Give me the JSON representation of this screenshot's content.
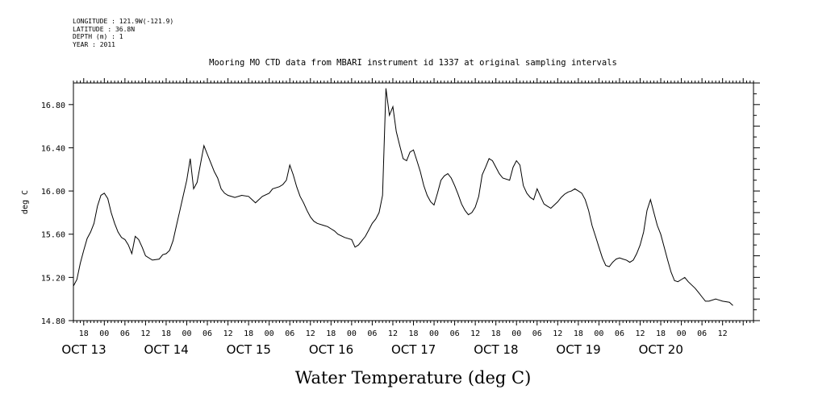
{
  "metadata": {
    "longitude": "LONGITUDE : 121.9W(-121.9)",
    "latitude": "LATITUDE : 36.8N",
    "depth": "DEPTH (m) : 1",
    "year": "YEAR : 2011"
  },
  "chart_data": {
    "type": "line",
    "title": "Mooring MO CTD data from MBARI instrument id 1337 at original sampling intervals",
    "xlabel": "Water Temperature (deg C)",
    "ylabel": "deg C",
    "ylim": [
      14.8,
      17.0
    ],
    "y_ticks": [
      "14.80",
      "15.20",
      "15.60",
      "16.00",
      "16.40",
      "16.80"
    ],
    "x_range_hours": [
      "2011-10-12T15:00",
      "2011-10-20T21:00"
    ],
    "hour_ticks": [
      "18",
      "00",
      "06",
      "12",
      "18",
      "00",
      "06",
      "12",
      "18",
      "00",
      "06",
      "12",
      "18",
      "00",
      "06",
      "12",
      "18",
      "00",
      "06",
      "12",
      "18",
      "00",
      "06",
      "12",
      "18",
      "00",
      "06",
      "12",
      "18",
      "00",
      "06",
      "12"
    ],
    "date_labels": [
      "OCT 13",
      "OCT 14",
      "OCT 15",
      "OCT 16",
      "OCT 17",
      "OCT 18",
      "OCT 19",
      "OCT 20"
    ],
    "grid": false,
    "series": [
      {
        "values": [
          [
            "2011-10-12T15:00",
            15.12
          ],
          [
            "2011-10-12T16:00",
            15.18
          ],
          [
            "2011-10-12T17:00",
            15.33
          ],
          [
            "2011-10-12T18:00",
            15.45
          ],
          [
            "2011-10-12T19:00",
            15.56
          ],
          [
            "2011-10-12T20:00",
            15.62
          ],
          [
            "2011-10-12T21:00",
            15.7
          ],
          [
            "2011-10-12T22:00",
            15.86
          ],
          [
            "2011-10-12T23:00",
            15.96
          ],
          [
            "2011-10-13T00:00",
            15.98
          ],
          [
            "2011-10-13T01:00",
            15.93
          ],
          [
            "2011-10-13T02:00",
            15.8
          ],
          [
            "2011-10-13T03:00",
            15.7
          ],
          [
            "2011-10-13T04:00",
            15.62
          ],
          [
            "2011-10-13T05:00",
            15.57
          ],
          [
            "2011-10-13T06:00",
            15.55
          ],
          [
            "2011-10-13T07:00",
            15.5
          ],
          [
            "2011-10-13T08:00",
            15.42
          ],
          [
            "2011-10-13T09:00",
            15.58
          ],
          [
            "2011-10-13T10:00",
            15.55
          ],
          [
            "2011-10-13T11:00",
            15.48
          ],
          [
            "2011-10-13T12:00",
            15.4
          ],
          [
            "2011-10-13T14:00",
            15.36
          ],
          [
            "2011-10-13T16:00",
            15.37
          ],
          [
            "2011-10-13T17:00",
            15.41
          ],
          [
            "2011-10-13T18:00",
            15.42
          ],
          [
            "2011-10-13T19:00",
            15.45
          ],
          [
            "2011-10-13T20:00",
            15.54
          ],
          [
            "2011-10-13T21:00",
            15.68
          ],
          [
            "2011-10-13T22:00",
            15.82
          ],
          [
            "2011-10-13T23:00",
            15.96
          ],
          [
            "2011-10-14T00:00",
            16.1
          ],
          [
            "2011-10-14T01:00",
            16.3
          ],
          [
            "2011-10-14T02:00",
            16.02
          ],
          [
            "2011-10-14T03:00",
            16.08
          ],
          [
            "2011-10-14T04:00",
            16.25
          ],
          [
            "2011-10-14T05:00",
            16.42
          ],
          [
            "2011-10-14T06:00",
            16.34
          ],
          [
            "2011-10-14T07:00",
            16.26
          ],
          [
            "2011-10-14T08:00",
            16.18
          ],
          [
            "2011-10-14T09:00",
            16.12
          ],
          [
            "2011-10-14T10:00",
            16.02
          ],
          [
            "2011-10-14T11:00",
            15.98
          ],
          [
            "2011-10-14T12:00",
            15.96
          ],
          [
            "2011-10-14T14:00",
            15.94
          ],
          [
            "2011-10-14T16:00",
            15.96
          ],
          [
            "2011-10-14T18:00",
            15.95
          ],
          [
            "2011-10-14T20:00",
            15.89
          ],
          [
            "2011-10-14T22:00",
            15.95
          ],
          [
            "2011-10-15T00:00",
            15.98
          ],
          [
            "2011-10-15T01:00",
            16.02
          ],
          [
            "2011-10-15T03:00",
            16.04
          ],
          [
            "2011-10-15T04:00",
            16.06
          ],
          [
            "2011-10-15T05:00",
            16.1
          ],
          [
            "2011-10-15T06:00",
            16.24
          ],
          [
            "2011-10-15T07:00",
            16.15
          ],
          [
            "2011-10-15T08:00",
            16.04
          ],
          [
            "2011-10-15T09:00",
            15.95
          ],
          [
            "2011-10-15T10:00",
            15.89
          ],
          [
            "2011-10-15T11:00",
            15.82
          ],
          [
            "2011-10-15T12:00",
            15.76
          ],
          [
            "2011-10-15T13:00",
            15.72
          ],
          [
            "2011-10-15T14:00",
            15.7
          ],
          [
            "2011-10-15T16:00",
            15.68
          ],
          [
            "2011-10-15T17:00",
            15.67
          ],
          [
            "2011-10-15T18:00",
            15.65
          ],
          [
            "2011-10-15T19:00",
            15.63
          ],
          [
            "2011-10-15T20:00",
            15.6
          ],
          [
            "2011-10-15T22:00",
            15.57
          ],
          [
            "2011-10-16T00:00",
            15.55
          ],
          [
            "2011-10-16T01:00",
            15.48
          ],
          [
            "2011-10-16T02:00",
            15.5
          ],
          [
            "2011-10-16T03:00",
            15.54
          ],
          [
            "2011-10-16T04:00",
            15.58
          ],
          [
            "2011-10-16T05:00",
            15.64
          ],
          [
            "2011-10-16T06:00",
            15.7
          ],
          [
            "2011-10-16T07:00",
            15.74
          ],
          [
            "2011-10-16T08:00",
            15.8
          ],
          [
            "2011-10-16T09:00",
            15.96
          ],
          [
            "2011-10-16T10:00",
            16.95
          ],
          [
            "2011-10-16T11:00",
            16.7
          ],
          [
            "2011-10-16T12:00",
            16.78
          ],
          [
            "2011-10-16T13:00",
            16.55
          ],
          [
            "2011-10-16T14:00",
            16.42
          ],
          [
            "2011-10-16T15:00",
            16.3
          ],
          [
            "2011-10-16T16:00",
            16.28
          ],
          [
            "2011-10-16T17:00",
            16.36
          ],
          [
            "2011-10-16T18:00",
            16.38
          ],
          [
            "2011-10-16T19:00",
            16.28
          ],
          [
            "2011-10-16T20:00",
            16.18
          ],
          [
            "2011-10-16T21:00",
            16.05
          ],
          [
            "2011-10-16T22:00",
            15.96
          ],
          [
            "2011-10-16T23:00",
            15.9
          ],
          [
            "2011-10-17T00:00",
            15.87
          ],
          [
            "2011-10-17T01:00",
            15.98
          ],
          [
            "2011-10-17T02:00",
            16.1
          ],
          [
            "2011-10-17T03:00",
            16.14
          ],
          [
            "2011-10-17T04:00",
            16.16
          ],
          [
            "2011-10-17T05:00",
            16.12
          ],
          [
            "2011-10-17T06:00",
            16.05
          ],
          [
            "2011-10-17T07:00",
            15.97
          ],
          [
            "2011-10-17T08:00",
            15.88
          ],
          [
            "2011-10-17T09:00",
            15.82
          ],
          [
            "2011-10-17T10:00",
            15.78
          ],
          [
            "2011-10-17T11:00",
            15.8
          ],
          [
            "2011-10-17T12:00",
            15.85
          ],
          [
            "2011-10-17T13:00",
            15.95
          ],
          [
            "2011-10-17T14:00",
            16.15
          ],
          [
            "2011-10-17T15:00",
            16.22
          ],
          [
            "2011-10-17T16:00",
            16.3
          ],
          [
            "2011-10-17T17:00",
            16.28
          ],
          [
            "2011-10-17T18:00",
            16.22
          ],
          [
            "2011-10-17T19:00",
            16.16
          ],
          [
            "2011-10-17T20:00",
            16.12
          ],
          [
            "2011-10-17T22:00",
            16.1
          ],
          [
            "2011-10-17T23:00",
            16.22
          ],
          [
            "2011-10-18T00:00",
            16.28
          ],
          [
            "2011-10-18T01:00",
            16.24
          ],
          [
            "2011-10-18T02:00",
            16.05
          ],
          [
            "2011-10-18T03:00",
            15.98
          ],
          [
            "2011-10-18T04:00",
            15.94
          ],
          [
            "2011-10-18T05:00",
            15.92
          ],
          [
            "2011-10-18T06:00",
            16.02
          ],
          [
            "2011-10-18T07:00",
            15.95
          ],
          [
            "2011-10-18T08:00",
            15.88
          ],
          [
            "2011-10-18T09:00",
            15.86
          ],
          [
            "2011-10-18T10:00",
            15.84
          ],
          [
            "2011-10-18T11:00",
            15.87
          ],
          [
            "2011-10-18T12:00",
            15.9
          ],
          [
            "2011-10-18T13:00",
            15.94
          ],
          [
            "2011-10-18T14:00",
            15.97
          ],
          [
            "2011-10-18T15:00",
            15.99
          ],
          [
            "2011-10-18T16:00",
            16.0
          ],
          [
            "2011-10-18T17:00",
            16.02
          ],
          [
            "2011-10-18T18:00",
            16.0
          ],
          [
            "2011-10-18T19:00",
            15.98
          ],
          [
            "2011-10-18T20:00",
            15.92
          ],
          [
            "2011-10-18T21:00",
            15.82
          ],
          [
            "2011-10-18T22:00",
            15.68
          ],
          [
            "2011-10-18T23:00",
            15.58
          ],
          [
            "2011-10-19T00:00",
            15.48
          ],
          [
            "2011-10-19T01:00",
            15.38
          ],
          [
            "2011-10-19T02:00",
            15.31
          ],
          [
            "2011-10-19T03:00",
            15.3
          ],
          [
            "2011-10-19T04:00",
            15.34
          ],
          [
            "2011-10-19T05:00",
            15.37
          ],
          [
            "2011-10-19T06:00",
            15.38
          ],
          [
            "2011-10-19T07:00",
            15.37
          ],
          [
            "2011-10-19T08:00",
            15.36
          ],
          [
            "2011-10-19T09:00",
            15.34
          ],
          [
            "2011-10-19T10:00",
            15.36
          ],
          [
            "2011-10-19T11:00",
            15.42
          ],
          [
            "2011-10-19T12:00",
            15.5
          ],
          [
            "2011-10-19T13:00",
            15.62
          ],
          [
            "2011-10-19T14:00",
            15.82
          ],
          [
            "2011-10-19T15:00",
            15.92
          ],
          [
            "2011-10-19T16:00",
            15.8
          ],
          [
            "2011-10-19T17:00",
            15.68
          ],
          [
            "2011-10-19T18:00",
            15.6
          ],
          [
            "2011-10-19T19:00",
            15.48
          ],
          [
            "2011-10-19T20:00",
            15.36
          ],
          [
            "2011-10-19T21:00",
            15.25
          ],
          [
            "2011-10-19T22:00",
            15.17
          ],
          [
            "2011-10-19T23:00",
            15.16
          ],
          [
            "2011-10-20T00:00",
            15.18
          ],
          [
            "2011-10-20T01:00",
            15.2
          ],
          [
            "2011-10-20T02:00",
            15.16
          ],
          [
            "2011-10-20T03:00",
            15.13
          ],
          [
            "2011-10-20T04:00",
            15.1
          ],
          [
            "2011-10-20T05:00",
            15.06
          ],
          [
            "2011-10-20T06:00",
            15.02
          ],
          [
            "2011-10-20T07:00",
            14.98
          ],
          [
            "2011-10-20T08:00",
            14.98
          ],
          [
            "2011-10-20T10:00",
            15.0
          ],
          [
            "2011-10-20T12:00",
            14.98
          ],
          [
            "2011-10-20T14:00",
            14.97
          ],
          [
            "2011-10-20T15:00",
            14.94
          ]
        ]
      }
    ]
  }
}
